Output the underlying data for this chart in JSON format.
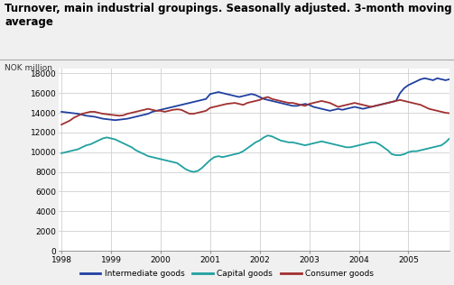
{
  "title": "Turnover, main industrial groupings. Seasonally adjusted. 3-month moving\naverage",
  "ylabel": "NOK million",
  "xlim": [
    1997.95,
    2005.83
  ],
  "ylim": [
    0,
    18500
  ],
  "yticks": [
    0,
    2000,
    4000,
    6000,
    8000,
    10000,
    12000,
    14000,
    16000,
    18000
  ],
  "xtick_labels": [
    "1998",
    "1999",
    "2000",
    "2001",
    "2002",
    "2003",
    "2004",
    "2005"
  ],
  "xtick_positions": [
    1998,
    1999,
    2000,
    2001,
    2002,
    2003,
    2004,
    2005
  ],
  "background_color": "#f0f0f0",
  "plot_bg_color": "#ffffff",
  "grid_color": "#d0d0d0",
  "intermediate_color": "#2040a0",
  "capital_color": "#20a0a0",
  "consumer_color": "#a03030",
  "line_width": 1.3,
  "legend_labels": [
    "Intermediate goods",
    "Capital goods",
    "Consumer goods"
  ],
  "intermediate_goods": [
    14100,
    14050,
    14000,
    13950,
    13900,
    13800,
    13700,
    13650,
    13600,
    13500,
    13400,
    13350,
    13300,
    13250,
    13300,
    13350,
    13400,
    13500,
    13600,
    13700,
    13800,
    13900,
    14100,
    14200,
    14300,
    14400,
    14500,
    14600,
    14700,
    14800,
    14900,
    15000,
    15100,
    15200,
    15300,
    15400,
    15900,
    16000,
    16100,
    16000,
    15900,
    15800,
    15700,
    15600,
    15700,
    15800,
    15900,
    15800,
    15600,
    15400,
    15300,
    15200,
    15100,
    15000,
    14900,
    14800,
    14700,
    14700,
    14800,
    14900,
    14800,
    14600,
    14500,
    14400,
    14300,
    14200,
    14300,
    14400,
    14300,
    14400,
    14500,
    14600,
    14500,
    14400,
    14500,
    14600,
    14700,
    14800,
    14900,
    15000,
    15100,
    15200,
    16000,
    16500,
    16800,
    17000,
    17200,
    17400,
    17500,
    17400,
    17300,
    17500,
    17400,
    17300,
    17400,
    17450
  ],
  "capital_goods": [
    9900,
    10000,
    10100,
    10200,
    10300,
    10500,
    10700,
    10800,
    11000,
    11200,
    11400,
    11500,
    11400,
    11300,
    11100,
    10900,
    10700,
    10500,
    10200,
    10000,
    9800,
    9600,
    9500,
    9400,
    9300,
    9200,
    9100,
    9000,
    8900,
    8600,
    8300,
    8100,
    8000,
    8100,
    8400,
    8800,
    9200,
    9500,
    9600,
    9500,
    9600,
    9700,
    9800,
    9900,
    10100,
    10400,
    10700,
    11000,
    11200,
    11500,
    11700,
    11600,
    11400,
    11200,
    11100,
    11000,
    11000,
    10900,
    10800,
    10700,
    10800,
    10900,
    11000,
    11100,
    11000,
    10900,
    10800,
    10700,
    10600,
    10500,
    10500,
    10600,
    10700,
    10800,
    10900,
    11000,
    11000,
    10800,
    10500,
    10200,
    9800,
    9700,
    9700,
    9800,
    10000,
    10100,
    10100,
    10200,
    10300,
    10400,
    10500,
    10600,
    10700,
    11000,
    11400,
    11700
  ],
  "consumer_goods": [
    12800,
    13000,
    13200,
    13500,
    13700,
    13900,
    14000,
    14100,
    14100,
    14000,
    13900,
    13850,
    13800,
    13750,
    13700,
    13750,
    13900,
    14000,
    14100,
    14200,
    14300,
    14400,
    14300,
    14200,
    14200,
    14100,
    14200,
    14300,
    14350,
    14300,
    14100,
    13900,
    13900,
    14000,
    14100,
    14200,
    14500,
    14600,
    14700,
    14800,
    14900,
    14950,
    15000,
    14900,
    14800,
    15000,
    15100,
    15200,
    15300,
    15500,
    15600,
    15400,
    15300,
    15200,
    15100,
    15000,
    15000,
    14900,
    14800,
    14700,
    14900,
    15000,
    15100,
    15200,
    15100,
    15000,
    14800,
    14600,
    14700,
    14800,
    14900,
    15000,
    14900,
    14800,
    14700,
    14600,
    14700,
    14800,
    14900,
    15000,
    15100,
    15200,
    15300,
    15200,
    15100,
    15000,
    14900,
    14800,
    14600,
    14400,
    14300,
    14200,
    14100,
    14000,
    13950,
    13900
  ]
}
